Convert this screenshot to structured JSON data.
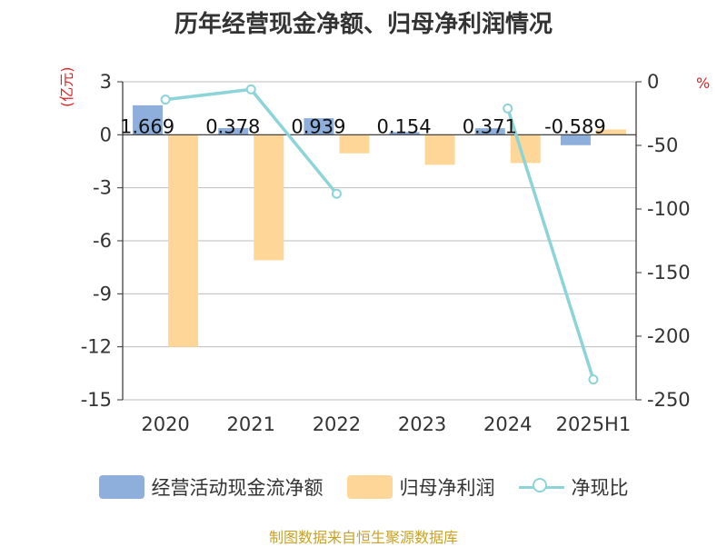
{
  "title": "历年经营现金净额、归母净利润情况",
  "units": {
    "left": "(亿元)",
    "right": "%"
  },
  "source": "制图数据来自恒生聚源数据库",
  "colors": {
    "cash": "#8eaedc",
    "profit": "#fed798",
    "ratio": "#8dd4d8",
    "unit": "#e02020",
    "source": "#c9a227"
  },
  "legend": {
    "cash": "经营活动现金流净额",
    "profit": "归母净利润",
    "ratio": "净现比"
  },
  "chart_data": {
    "type": "bar",
    "title": "历年经营现金净额、归母净利润情况",
    "categories": [
      "2020",
      "2021",
      "2022",
      "2023",
      "2024",
      "2025H1"
    ],
    "series": [
      {
        "name": "经营活动现金流净额",
        "type": "bar",
        "axis": "left",
        "values": [
          1.669,
          0.378,
          0.939,
          0.154,
          0.371,
          -0.589
        ],
        "labels": [
          "1.669",
          "0.378",
          "0.939",
          "0.154",
          "0.371",
          "-0.589"
        ]
      },
      {
        "name": "归母净利润",
        "type": "bar",
        "axis": "left",
        "values": [
          -12.0,
          -7.1,
          -1.05,
          -1.7,
          -1.6,
          0.3
        ]
      },
      {
        "name": "净现比",
        "type": "line",
        "axis": "right",
        "values": [
          -14,
          -6,
          -88,
          null,
          -21,
          -234
        ]
      }
    ],
    "left_axis": {
      "min": -15,
      "max": 3,
      "ticks": [
        3,
        0,
        -3,
        -6,
        -9,
        -12,
        -15
      ],
      "unit": "(亿元)"
    },
    "right_axis": {
      "min": -250,
      "max": 0,
      "ticks": [
        0,
        -50,
        -100,
        -150,
        -200,
        -250
      ],
      "unit": "%"
    },
    "grid": true,
    "legend_position": "bottom"
  }
}
